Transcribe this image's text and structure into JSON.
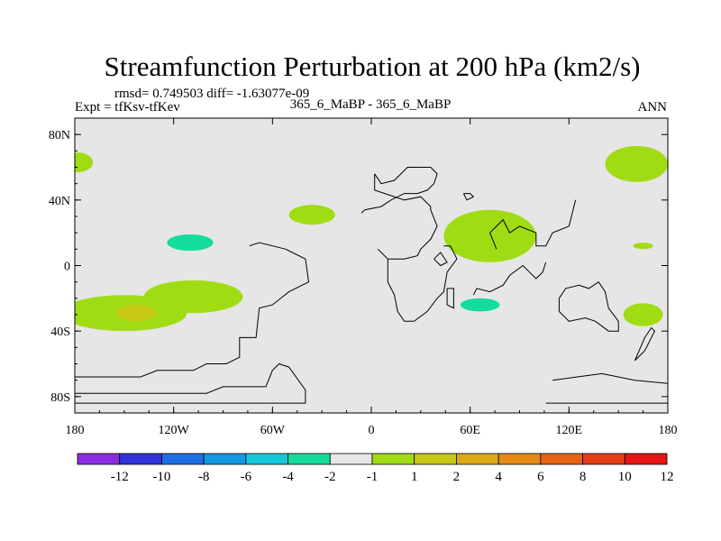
{
  "chart_data": {
    "type": "contour_map",
    "title": "Streamfunction Perturbation at 200 hPa (km2/s)",
    "stats_text": "rmsd= 0.749503 diff= -1.63077e-09",
    "left_label": "Expt = tfKsv-tfKev",
    "center_label": "365_6_MaBP - 365_6_MaBP",
    "right_label": "ANN",
    "x_range": [
      -180,
      180
    ],
    "y_range": [
      -90,
      90
    ],
    "x_ticks": [
      {
        "value": -180,
        "label": "180"
      },
      {
        "value": -120,
        "label": "120W"
      },
      {
        "value": -60,
        "label": "60W"
      },
      {
        "value": 0,
        "label": "0"
      },
      {
        "value": 60,
        "label": "60E"
      },
      {
        "value": 120,
        "label": "120E"
      },
      {
        "value": 180,
        "label": "180"
      }
    ],
    "y_ticks": [
      {
        "value": 80,
        "label": "80N"
      },
      {
        "value": 40,
        "label": "40N"
      },
      {
        "value": 0,
        "label": "0"
      },
      {
        "value": -40,
        "label": "40S"
      },
      {
        "value": -80,
        "label": "80S"
      }
    ],
    "colorbar": {
      "colors": [
        "#8e2ce3",
        "#3232dc",
        "#1e6ee6",
        "#1497e3",
        "#14c8dc",
        "#14dc9c",
        "#e6e6e6",
        "#a0dc14",
        "#c8c814",
        "#dcaa14",
        "#e68a14",
        "#e66414",
        "#e63c14",
        "#e61414"
      ],
      "labels": [
        "-12",
        "-10",
        "-8",
        "-6",
        "-4",
        "-2",
        "-1",
        "1",
        "2",
        "4",
        "6",
        "8",
        "10",
        "12"
      ]
    },
    "regions": [
      {
        "lon": -178,
        "lat": 63,
        "rlon": 9,
        "rlat": 6,
        "level": 1
      },
      {
        "lon": -178,
        "lat": 37,
        "rlon": 3,
        "rlat": 3,
        "level": -1
      },
      {
        "lon": -40,
        "lat": 59,
        "rlon": 6,
        "rlat": 2,
        "level": -1
      },
      {
        "lon": -114,
        "lat": 14,
        "rlon": 36,
        "rlat": 14,
        "level": -1
      },
      {
        "lon": -110,
        "lat": 14,
        "rlon": 14,
        "rlat": 5,
        "level": -2
      },
      {
        "lon": -150,
        "lat": -29,
        "rlon": 38,
        "rlat": 11,
        "level": 1
      },
      {
        "lon": -108,
        "lat": -19,
        "rlon": 30,
        "rlat": 10,
        "level": 1
      },
      {
        "lon": -143,
        "lat": -29,
        "rlon": 12,
        "rlat": 5,
        "level": 2
      },
      {
        "lon": -36,
        "lat": 31,
        "rlon": 14,
        "rlat": 6,
        "level": 1
      },
      {
        "lon": 17,
        "lat": 24,
        "rlon": 8,
        "rlat": 4,
        "level": -1
      },
      {
        "lon": 73,
        "lat": 59,
        "rlon": 14,
        "rlat": 4,
        "level": -1
      },
      {
        "lon": 72,
        "lat": 18,
        "rlon": 28,
        "rlat": 16,
        "level": 1
      },
      {
        "lon": 161,
        "lat": 62,
        "rlon": 19,
        "rlat": 11,
        "level": 1
      },
      {
        "lon": 163,
        "lat": 36,
        "rlon": 17,
        "rlat": 6,
        "level": -1
      },
      {
        "lon": 165,
        "lat": 12,
        "rlon": 6,
        "rlat": 2,
        "level": 1
      },
      {
        "lon": 165,
        "lat": -30,
        "rlon": 12,
        "rlat": 7,
        "level": 1
      },
      {
        "lon": 64,
        "lat": -27,
        "rlon": 38,
        "rlat": 17,
        "level": -1
      },
      {
        "lon": 66,
        "lat": -24,
        "rlon": 12,
        "rlat": 4,
        "level": -2
      }
    ],
    "coastlines": [
      [
        [
          -180,
          -68
        ],
        [
          -140,
          -68
        ],
        [
          -130,
          -64
        ],
        [
          -108,
          -64
        ],
        [
          -100,
          -60
        ],
        [
          -88,
          -60
        ],
        [
          -80,
          -56
        ],
        [
          -80,
          -44
        ],
        [
          -70,
          -44
        ],
        [
          -68,
          -26
        ],
        [
          -60,
          -24
        ],
        [
          -50,
          -16
        ],
        [
          -38,
          -10
        ],
        [
          -40,
          4
        ],
        [
          -48,
          8
        ],
        [
          -52,
          10
        ],
        [
          -60,
          12
        ],
        [
          -68,
          14
        ],
        [
          -74,
          12
        ]
      ],
      [
        [
          -180,
          -78
        ],
        [
          -100,
          -78
        ],
        [
          -90,
          -74
        ],
        [
          -64,
          -74
        ],
        [
          -60,
          -64
        ],
        [
          -56,
          -60
        ],
        [
          -50,
          -62
        ],
        [
          -40,
          -76
        ],
        [
          -40,
          -84
        ],
        [
          -180,
          -84
        ]
      ],
      [
        [
          2,
          56
        ],
        [
          2,
          46
        ],
        [
          20,
          40
        ],
        [
          30,
          42
        ],
        [
          36,
          36
        ],
        [
          36,
          34
        ],
        [
          40,
          24
        ],
        [
          36,
          16
        ],
        [
          30,
          10
        ],
        [
          28,
          6
        ],
        [
          20,
          4
        ],
        [
          10,
          4
        ],
        [
          4,
          10
        ]
      ],
      [
        [
          -6,
          32
        ],
        [
          -4,
          34
        ],
        [
          6,
          36
        ],
        [
          12,
          40
        ],
        [
          20,
          44
        ],
        [
          28,
          44
        ],
        [
          34,
          46
        ],
        [
          38,
          50
        ],
        [
          40,
          56
        ],
        [
          36,
          60
        ],
        [
          22,
          60
        ],
        [
          14,
          52
        ],
        [
          6,
          50
        ],
        [
          2,
          56
        ]
      ],
      [
        [
          10,
          4
        ],
        [
          10,
          -10
        ],
        [
          14,
          -18
        ],
        [
          16,
          -28
        ],
        [
          20,
          -34
        ],
        [
          26,
          -34
        ],
        [
          34,
          -28
        ],
        [
          40,
          -20
        ],
        [
          44,
          -16
        ],
        [
          46,
          -4
        ],
        [
          52,
          4
        ],
        [
          48,
          12
        ],
        [
          44,
          12
        ]
      ],
      [
        [
          46,
          -14
        ],
        [
          50,
          -14
        ],
        [
          50,
          -26
        ],
        [
          46,
          -24
        ],
        [
          46,
          -14
        ]
      ],
      [
        [
          76,
          10
        ],
        [
          72,
          20
        ],
        [
          80,
          28
        ],
        [
          84,
          20
        ],
        [
          90,
          24
        ],
        [
          100,
          20
        ],
        [
          100,
          12
        ],
        [
          106,
          12
        ],
        [
          110,
          20
        ],
        [
          120,
          24
        ],
        [
          122,
          32
        ],
        [
          124,
          40
        ]
      ],
      [
        [
          62,
          -18
        ],
        [
          64,
          -14
        ],
        [
          72,
          -16
        ],
        [
          80,
          -12
        ],
        [
          84,
          -6
        ],
        [
          92,
          0
        ],
        [
          96,
          -4
        ],
        [
          100,
          -8
        ],
        [
          104,
          -4
        ],
        [
          106,
          2
        ]
      ],
      [
        [
          114,
          -20
        ],
        [
          118,
          -14
        ],
        [
          126,
          -12
        ],
        [
          132,
          -14
        ],
        [
          138,
          -10
        ],
        [
          142,
          -16
        ],
        [
          144,
          -26
        ],
        [
          150,
          -34
        ],
        [
          150,
          -40
        ],
        [
          144,
          -40
        ],
        [
          136,
          -34
        ],
        [
          130,
          -32
        ],
        [
          120,
          -34
        ],
        [
          114,
          -28
        ],
        [
          114,
          -20
        ]
      ],
      [
        [
          160,
          -58
        ],
        [
          166,
          -44
        ],
        [
          170,
          -38
        ],
        [
          172,
          -40
        ],
        [
          166,
          -52
        ],
        [
          160,
          -58
        ]
      ],
      [
        [
          110,
          -70
        ],
        [
          140,
          -66
        ],
        [
          160,
          -70
        ],
        [
          180,
          -72
        ]
      ],
      [
        [
          106,
          -84
        ],
        [
          180,
          -84
        ]
      ],
      [
        [
          56,
          44
        ],
        [
          60,
          44
        ],
        [
          62,
          42
        ],
        [
          58,
          40
        ],
        [
          56,
          44
        ]
      ],
      [
        [
          38,
          4
        ],
        [
          42,
          0
        ],
        [
          46,
          2
        ],
        [
          42,
          8
        ],
        [
          38,
          4
        ]
      ]
    ]
  }
}
